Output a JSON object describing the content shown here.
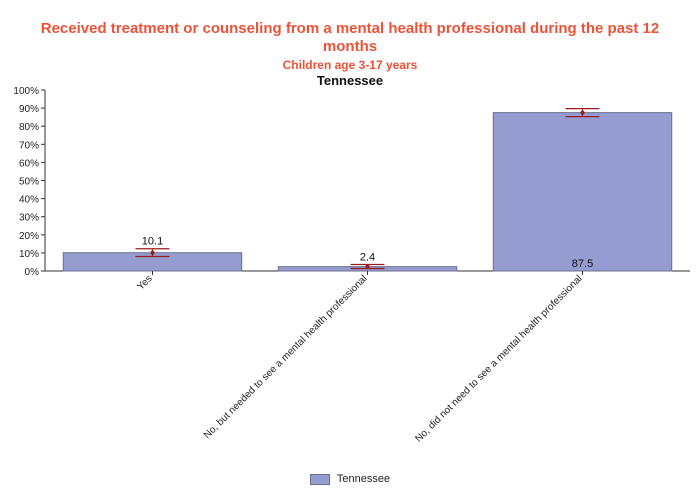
{
  "chart_data": {
    "type": "bar",
    "title": "Received treatment or counseling from a mental health professional during the past 12 months",
    "subtitle": "Children age 3-17 years",
    "group_label": "Tennessee",
    "categories": [
      "Yes",
      "No, but needed to see a mental health professional",
      "No, did not need to see a mental health professional"
    ],
    "series": [
      {
        "name": "Tennessee",
        "values": [
          10.1,
          2.4,
          87.5
        ],
        "labels": [
          "10.1",
          "2.4",
          "87.5"
        ],
        "ci_low": [
          8.0,
          1.4,
          85.3
        ],
        "ci_high": [
          12.3,
          3.6,
          89.7
        ]
      }
    ],
    "ylim": [
      0,
      100
    ],
    "yticks": [
      "0%",
      "10%",
      "20%",
      "30%",
      "40%",
      "50%",
      "60%",
      "70%",
      "80%",
      "90%",
      "100%"
    ],
    "bar_color": "#959ccf",
    "error_color": "#9b1c1c",
    "legend_position": "bottom"
  }
}
